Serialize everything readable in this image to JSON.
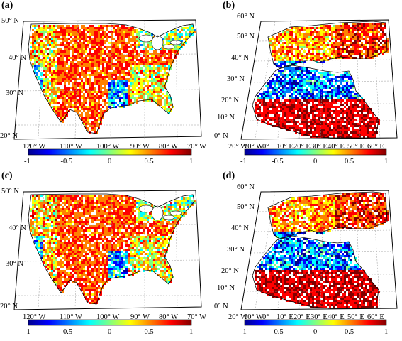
{
  "panels": [
    {
      "id": "a",
      "label": "(a)",
      "region": "conus",
      "lat_labels": [
        "50° N",
        "40° N",
        "30° N",
        "20° N"
      ],
      "lon_labels": [
        "120° W",
        "110° W",
        "100° W",
        "90° W",
        "80° W",
        "70° W"
      ],
      "colorbar_ticks": [
        "-1",
        "-0.5",
        "0",
        "0.5",
        "1"
      ]
    },
    {
      "id": "b",
      "label": "(b)",
      "region": "europe-africa",
      "lat_labels": [
        "60° N",
        "50° N",
        "40° N",
        "30° N",
        "20° N",
        "10° N",
        "0° N"
      ],
      "lon_labels": [
        "20° W",
        "10° W",
        "0°",
        "10° E",
        "20° E",
        "30° E",
        "40° E",
        "50° E",
        "60° E"
      ],
      "colorbar_ticks": [
        "-1",
        "-0.5",
        "0",
        "0.5",
        "1"
      ]
    },
    {
      "id": "c",
      "label": "(c)",
      "region": "conus",
      "lat_labels": [
        "50° N",
        "40° N",
        "30° N",
        "20° N"
      ],
      "lon_labels": [
        "120° W",
        "110° W",
        "100° W",
        "90° W",
        "80° W",
        "70° W"
      ],
      "colorbar_ticks": [
        "-1",
        "-0.5",
        "0",
        "0.5",
        "1"
      ]
    },
    {
      "id": "d",
      "label": "(d)",
      "region": "europe-africa",
      "lat_labels": [
        "60° N",
        "50° N",
        "40° N",
        "30° N",
        "20° N",
        "10° N",
        "0° N"
      ],
      "lon_labels": [
        "20° W",
        "10° W",
        "0°",
        "10° E",
        "20° E",
        "30° E",
        "40° E",
        "50° E",
        "60° E"
      ],
      "colorbar_ticks": [
        "-1",
        "-0.5",
        "0",
        "0.5",
        "1"
      ]
    }
  ],
  "colormap": [
    "#00008f",
    "#0000ff",
    "#0080ff",
    "#00ffff",
    "#80ff80",
    "#ffff00",
    "#ff8000",
    "#ff0000",
    "#800000"
  ]
}
